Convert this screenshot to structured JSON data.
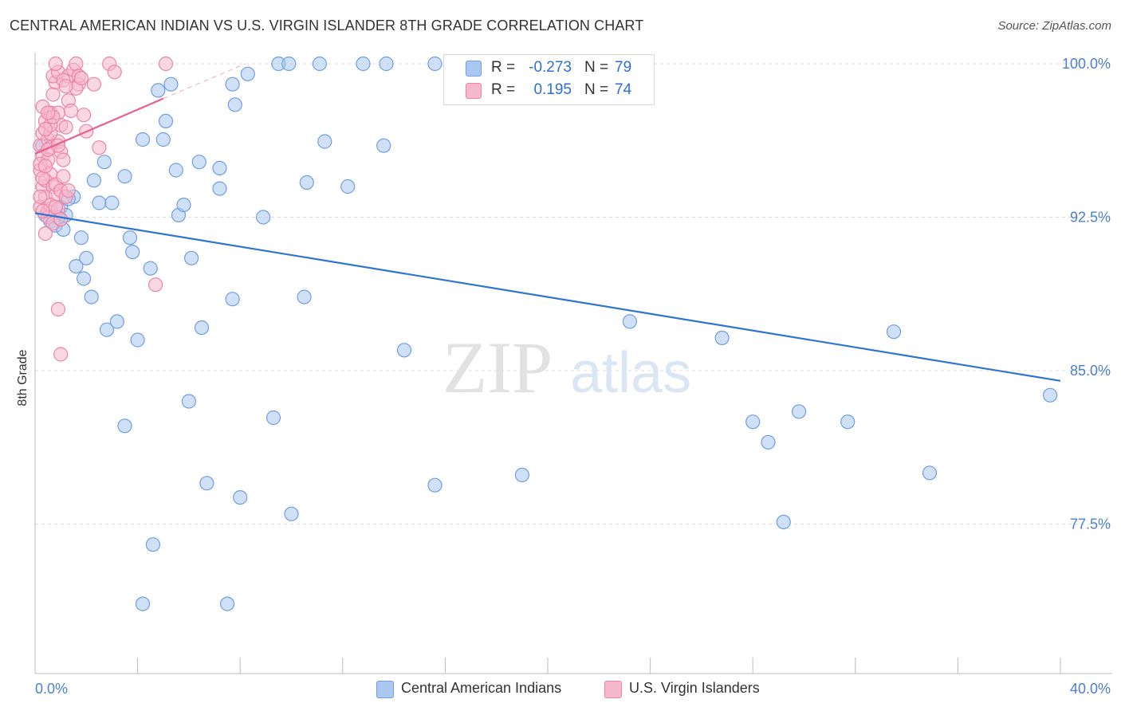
{
  "title": "CENTRAL AMERICAN INDIAN VS U.S. VIRGIN ISLANDER 8TH GRADE CORRELATION CHART",
  "source": "Source: ZipAtlas.com",
  "watermark": {
    "zip": "ZIP",
    "atlas": "atlas"
  },
  "colors": {
    "blue_fill": "#a9c7ef",
    "blue_stroke": "#6f9fe0",
    "blue_line": "#2f74d0",
    "pink_fill": "#f5b8cc",
    "pink_stroke": "#ec84a6",
    "pink_line": "#e8608d",
    "axis_text": "#4a80d0",
    "grid": "#dddddd"
  },
  "legend": {
    "rows": [
      {
        "r_label": "R =",
        "r_value": "-0.273",
        "n_label": "N =",
        "n_value": "79"
      },
      {
        "r_label": "R =",
        "r_value": "0.195",
        "n_label": "N =",
        "n_value": "74"
      }
    ]
  },
  "bottom_legend": {
    "items": [
      "Central American Indians",
      "U.S. Virgin Islanders"
    ]
  },
  "chart_data": {
    "type": "scatter",
    "title": "CENTRAL AMERICAN INDIAN VS U.S. VIRGIN ISLANDER 8TH GRADE CORRELATION CHART",
    "xlabel": "",
    "ylabel": "8th Grade",
    "xlim": [
      0,
      40
    ],
    "ylim": [
      70.5,
      101
    ],
    "x_tick_labels": [
      "0.0%",
      "40.0%"
    ],
    "y_ticks": [
      77.5,
      85.0,
      92.5,
      100.0
    ],
    "y_tick_labels": [
      "77.5%",
      "85.0%",
      "92.5%",
      "100.0%"
    ],
    "grid": "horizontal dashed",
    "legend_position": "top-center",
    "series": [
      {
        "name": "Central American Indians",
        "color": "#a9c7ef",
        "trend": {
          "x": [
            0,
            40
          ],
          "y": [
            92.7,
            84.5
          ]
        },
        "points": [
          [
            0.4,
            92.6
          ],
          [
            0.6,
            92.3
          ],
          [
            0.8,
            92.1
          ],
          [
            1.0,
            93.0
          ],
          [
            1.2,
            92.6
          ],
          [
            1.1,
            91.9
          ],
          [
            0.9,
            92.5
          ],
          [
            1.5,
            93.5
          ],
          [
            1.8,
            91.5
          ],
          [
            1.6,
            90.1
          ],
          [
            1.9,
            89.5
          ],
          [
            2.2,
            88.6
          ],
          [
            2.3,
            94.3
          ],
          [
            2.5,
            93.2
          ],
          [
            2.7,
            95.2
          ],
          [
            3.0,
            93.2
          ],
          [
            2.8,
            87.0
          ],
          [
            3.2,
            87.4
          ],
          [
            3.5,
            94.5
          ],
          [
            3.7,
            91.5
          ],
          [
            3.8,
            90.8
          ],
          [
            4.0,
            86.5
          ],
          [
            4.2,
            96.3
          ],
          [
            4.5,
            90.0
          ],
          [
            4.8,
            98.7
          ],
          [
            5.0,
            96.3
          ],
          [
            5.1,
            97.2
          ],
          [
            5.3,
            99.0
          ],
          [
            5.5,
            94.8
          ],
          [
            5.6,
            92.6
          ],
          [
            5.8,
            93.1
          ],
          [
            6.1,
            90.5
          ],
          [
            6.4,
            95.2
          ],
          [
            6.5,
            87.1
          ],
          [
            6.0,
            83.5
          ],
          [
            3.5,
            82.3
          ],
          [
            6.7,
            79.5
          ],
          [
            4.6,
            76.5
          ],
          [
            4.2,
            73.6
          ],
          [
            7.2,
            94.9
          ],
          [
            7.2,
            93.9
          ],
          [
            7.7,
            88.5
          ],
          [
            7.7,
            99.0
          ],
          [
            7.8,
            98.0
          ],
          [
            8.3,
            99.5
          ],
          [
            8.0,
            78.8
          ],
          [
            7.5,
            73.6
          ],
          [
            8.9,
            92.5
          ],
          [
            9.3,
            82.7
          ],
          [
            9.5,
            100.0
          ],
          [
            9.9,
            100.0
          ],
          [
            10.0,
            78.0
          ],
          [
            10.5,
            88.6
          ],
          [
            10.6,
            94.2
          ],
          [
            11.1,
            100.0
          ],
          [
            11.3,
            96.2
          ],
          [
            12.2,
            94.0
          ],
          [
            12.8,
            100.0
          ],
          [
            13.7,
            100.0
          ],
          [
            13.6,
            96.0
          ],
          [
            14.4,
            86.0
          ],
          [
            15.6,
            100.0
          ],
          [
            15.6,
            79.4
          ],
          [
            16.4,
            100.0
          ],
          [
            19.0,
            79.9
          ],
          [
            20.0,
            100.0
          ],
          [
            23.2,
            87.4
          ],
          [
            26.8,
            86.6
          ],
          [
            28.0,
            82.5
          ],
          [
            28.6,
            81.5
          ],
          [
            29.2,
            77.6
          ],
          [
            29.8,
            83.0
          ],
          [
            31.7,
            82.5
          ],
          [
            33.5,
            86.9
          ],
          [
            34.9,
            80.0
          ],
          [
            39.6,
            83.8
          ],
          [
            0.3,
            96.0
          ],
          [
            1.3,
            93.4
          ],
          [
            2.0,
            90.5
          ]
        ]
      },
      {
        "name": "U.S. Virgin Islanders",
        "color": "#f5b8cc",
        "trend": {
          "x": [
            0,
            5
          ],
          "y": [
            95.6,
            98.3
          ]
        },
        "trend_extension": {
          "x": [
            5,
            8.2
          ],
          "y": [
            98.3,
            100.0
          ]
        },
        "points": [
          [
            0.2,
            96.0
          ],
          [
            0.3,
            95.5
          ],
          [
            0.2,
            94.8
          ],
          [
            0.3,
            94.0
          ],
          [
            0.4,
            93.5
          ],
          [
            0.2,
            93.0
          ],
          [
            0.5,
            92.8
          ],
          [
            0.3,
            96.6
          ],
          [
            0.4,
            97.2
          ],
          [
            0.5,
            96.3
          ],
          [
            0.6,
            95.9
          ],
          [
            0.5,
            95.3
          ],
          [
            0.6,
            94.6
          ],
          [
            0.4,
            94.3
          ],
          [
            0.7,
            94.0
          ],
          [
            0.8,
            93.6
          ],
          [
            0.6,
            93.1
          ],
          [
            0.5,
            92.5
          ],
          [
            0.7,
            92.2
          ],
          [
            0.4,
            91.7
          ],
          [
            0.6,
            97.6
          ],
          [
            0.7,
            98.5
          ],
          [
            0.8,
            99.1
          ],
          [
            0.9,
            97.6
          ],
          [
            1.0,
            97.0
          ],
          [
            0.9,
            96.2
          ],
          [
            1.0,
            95.7
          ],
          [
            1.1,
            95.3
          ],
          [
            0.8,
            94.1
          ],
          [
            1.0,
            93.8
          ],
          [
            1.2,
            93.5
          ],
          [
            0.9,
            92.9
          ],
          [
            1.3,
            93.8
          ],
          [
            0.2,
            95.1
          ],
          [
            0.3,
            97.9
          ],
          [
            0.7,
            99.4
          ],
          [
            0.9,
            99.6
          ],
          [
            0.8,
            100.0
          ],
          [
            1.3,
            99.4
          ],
          [
            1.3,
            98.2
          ],
          [
            1.4,
            97.7
          ],
          [
            1.2,
            96.9
          ],
          [
            1.1,
            99.2
          ],
          [
            1.5,
            99.7
          ],
          [
            1.6,
            100.0
          ],
          [
            1.7,
            99.0
          ],
          [
            1.6,
            98.8
          ],
          [
            1.9,
            97.5
          ],
          [
            2.0,
            96.7
          ],
          [
            2.3,
            99.0
          ],
          [
            2.5,
            95.9
          ],
          [
            2.9,
            100.0
          ],
          [
            3.1,
            99.6
          ],
          [
            1.7,
            99.4
          ],
          [
            1.8,
            99.3
          ],
          [
            0.6,
            96.6
          ],
          [
            1.1,
            94.5
          ],
          [
            0.9,
            88.0
          ],
          [
            1.0,
            85.8
          ],
          [
            4.7,
            89.2
          ],
          [
            5.1,
            100.0
          ],
          [
            0.3,
            94.4
          ],
          [
            0.5,
            95.8
          ],
          [
            0.6,
            97.0
          ],
          [
            0.4,
            95.0
          ],
          [
            0.8,
            93.0
          ],
          [
            1.0,
            92.4
          ],
          [
            0.7,
            97.4
          ],
          [
            1.2,
            98.9
          ],
          [
            0.4,
            96.8
          ],
          [
            0.5,
            97.6
          ],
          [
            0.9,
            96.0
          ],
          [
            0.2,
            93.5
          ],
          [
            0.3,
            92.8
          ]
        ]
      }
    ]
  }
}
